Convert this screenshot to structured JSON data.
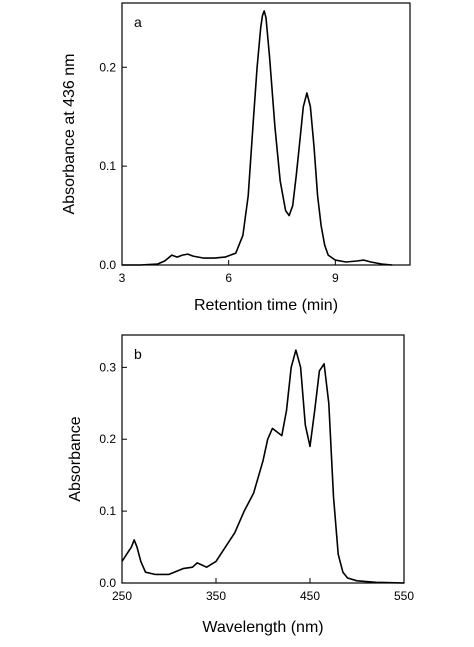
{
  "chart_data": [
    {
      "type": "line",
      "panel_label": "a",
      "xlabel": "Retention time (min)",
      "ylabel": "Absorbance at 436 nm",
      "xlim": [
        3,
        11.1
      ],
      "ylim": [
        0,
        0.265
      ],
      "xticks": [
        3,
        6,
        9
      ],
      "xtick_labels": [
        "3",
        "6",
        "9"
      ],
      "yticks": [
        0,
        0.1,
        0.2
      ],
      "ytick_labels": [
        "0.0",
        "0.1",
        "0.2"
      ],
      "grid": false,
      "series": [
        {
          "x": [
            3.0,
            3.5,
            4.0,
            4.2,
            4.4,
            4.55,
            4.7,
            4.85,
            5.0,
            5.3,
            5.6,
            5.9,
            6.2,
            6.4,
            6.55,
            6.7,
            6.8,
            6.9,
            6.95,
            7.0,
            7.05,
            7.15,
            7.3,
            7.45,
            7.6,
            7.7,
            7.8,
            7.9,
            8.0,
            8.1,
            8.2,
            8.3,
            8.4,
            8.5,
            8.6,
            8.7,
            8.8,
            9.0,
            9.3,
            9.6,
            9.8,
            10.0,
            10.3,
            10.6
          ],
          "y": [
            0.0,
            0.0,
            0.001,
            0.004,
            0.01,
            0.008,
            0.01,
            0.011,
            0.009,
            0.007,
            0.007,
            0.008,
            0.012,
            0.03,
            0.07,
            0.15,
            0.2,
            0.24,
            0.252,
            0.257,
            0.25,
            0.21,
            0.14,
            0.085,
            0.055,
            0.05,
            0.06,
            0.09,
            0.125,
            0.16,
            0.174,
            0.16,
            0.12,
            0.07,
            0.04,
            0.02,
            0.01,
            0.005,
            0.003,
            0.004,
            0.005,
            0.003,
            0.001,
            0.0
          ]
        }
      ]
    },
    {
      "type": "line",
      "panel_label": "b",
      "xlabel": "Wavelength (nm)",
      "ylabel": "Absorbance",
      "xlim": [
        250,
        550
      ],
      "ylim": [
        0,
        0.345
      ],
      "xticks": [
        250,
        350,
        450,
        550
      ],
      "xtick_labels": [
        "250",
        "350",
        "450",
        "550"
      ],
      "yticks": [
        0,
        0.1,
        0.2,
        0.3
      ],
      "ytick_labels": [
        "0.0",
        "0.1",
        "0.2",
        "0.3"
      ],
      "grid": false,
      "series": [
        {
          "x": [
            250,
            255,
            260,
            263,
            266,
            270,
            275,
            285,
            300,
            315,
            325,
            330,
            340,
            350,
            360,
            370,
            380,
            390,
            400,
            405,
            410,
            415,
            420,
            425,
            430,
            435,
            440,
            445,
            450,
            455,
            460,
            465,
            470,
            475,
            480,
            485,
            490,
            500,
            520,
            550
          ],
          "y": [
            0.03,
            0.04,
            0.05,
            0.06,
            0.05,
            0.03,
            0.015,
            0.012,
            0.012,
            0.02,
            0.022,
            0.028,
            0.022,
            0.03,
            0.05,
            0.07,
            0.1,
            0.125,
            0.17,
            0.2,
            0.215,
            0.21,
            0.205,
            0.24,
            0.3,
            0.324,
            0.3,
            0.22,
            0.19,
            0.24,
            0.295,
            0.305,
            0.25,
            0.12,
            0.04,
            0.015,
            0.007,
            0.003,
            0.001,
            0.0
          ]
        }
      ]
    }
  ]
}
